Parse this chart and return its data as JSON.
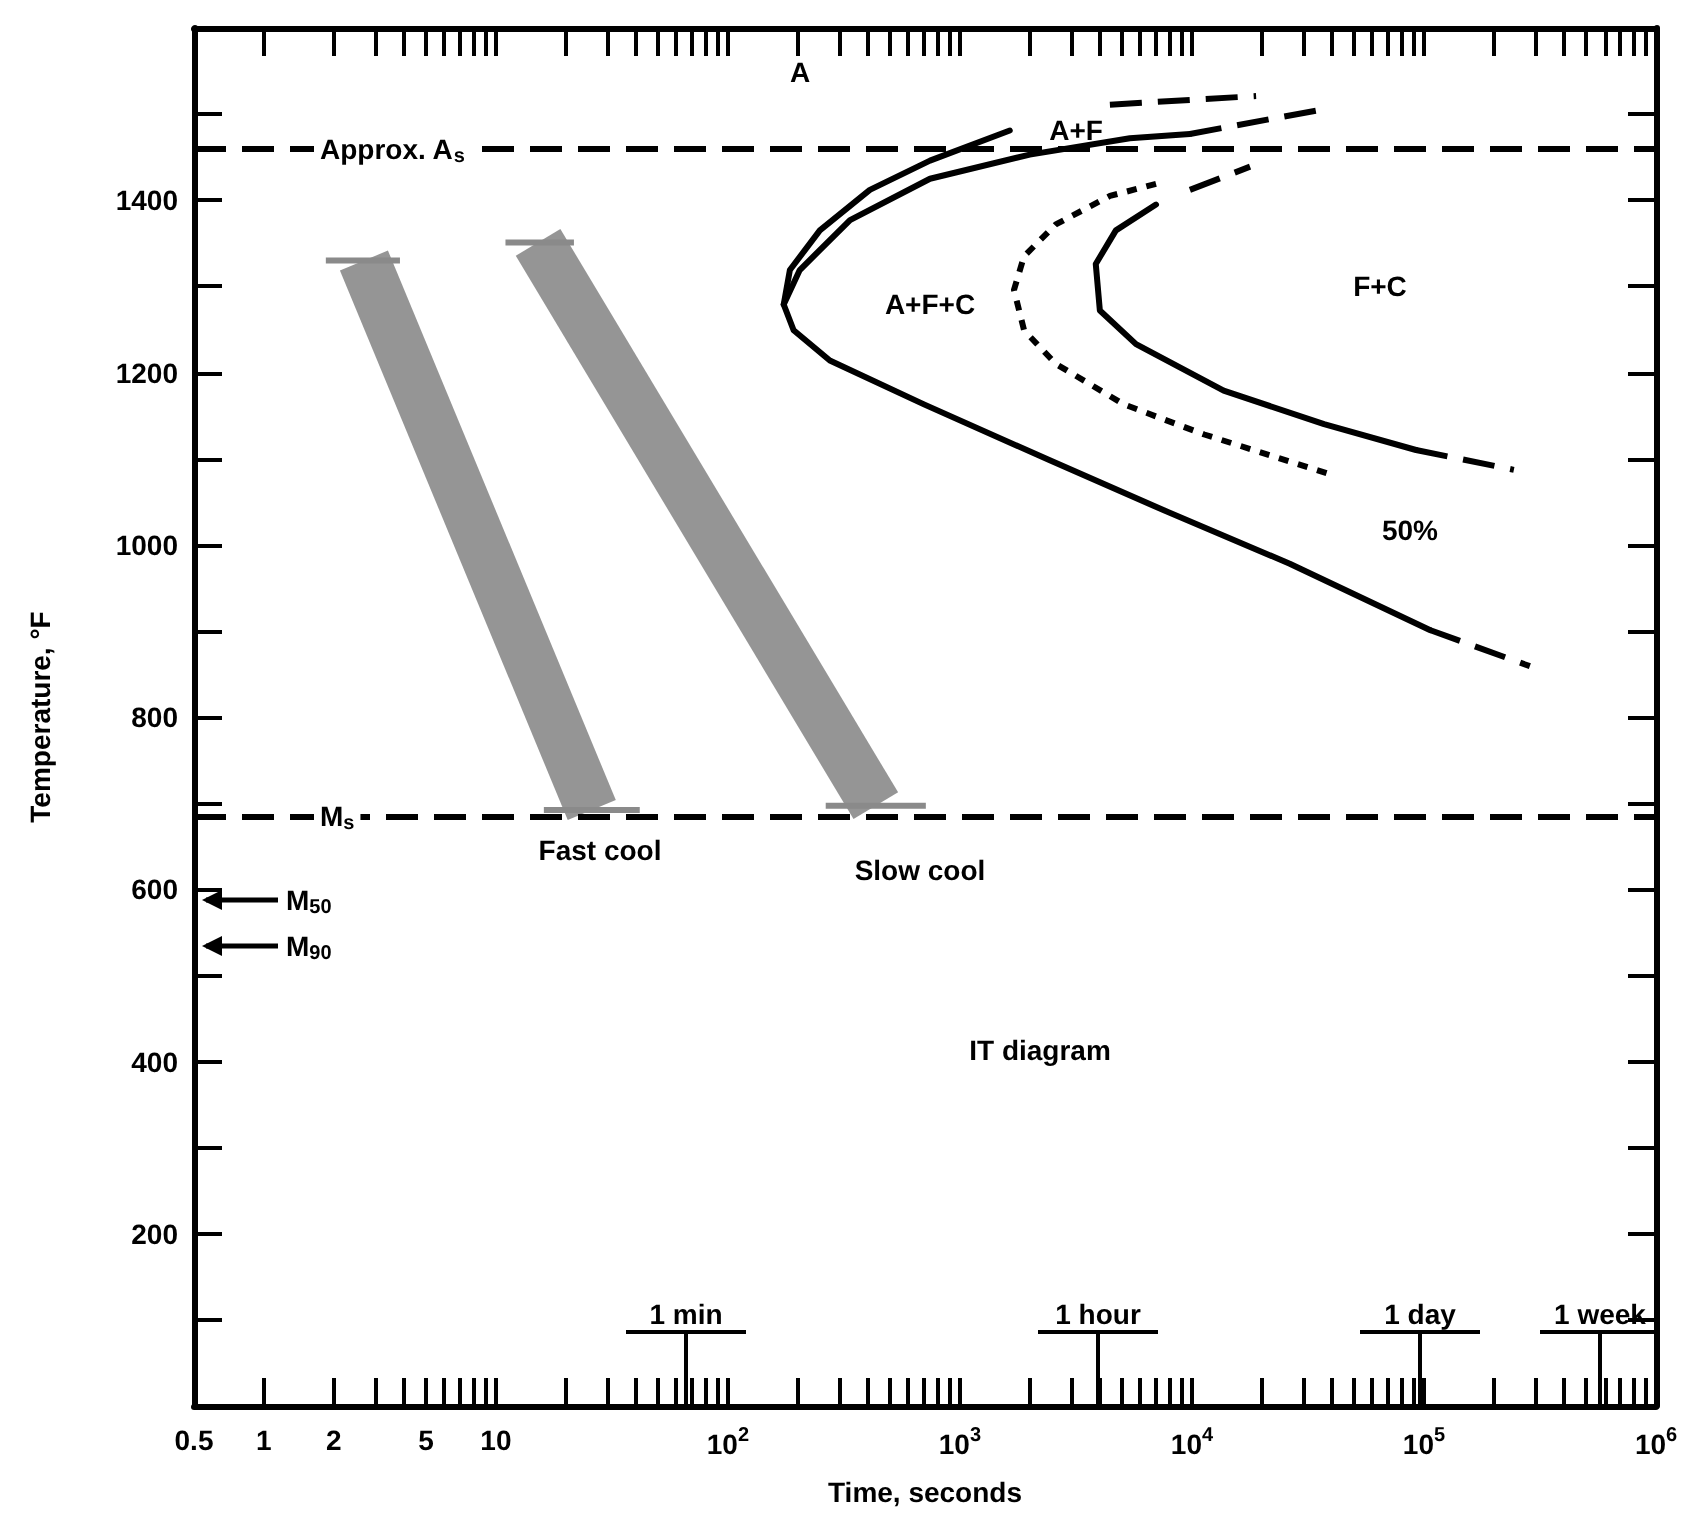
{
  "chart_data": {
    "type": "line",
    "xlabel": "Time, seconds",
    "ylabel": "Temperature, °F",
    "log": "x",
    "grid": false,
    "marker": "none",
    "xlim": [
      0.5,
      1000000
    ],
    "xticks": [
      0.5,
      1,
      2,
      {
        "value": 3,
        "label": null
      },
      {
        "value": 4,
        "label": null
      },
      5,
      {
        "value": 6,
        "label": null
      },
      {
        "value": 7,
        "label": null
      },
      {
        "value": 8,
        "label": null
      },
      {
        "value": 9,
        "label": null
      },
      10,
      {
        "value": 20,
        "label": null
      },
      {
        "value": 30,
        "label": null
      },
      {
        "value": 40,
        "label": null
      },
      {
        "value": 50,
        "label": null
      },
      {
        "value": 60,
        "label": null
      },
      {
        "value": 70,
        "label": null
      },
      {
        "value": 80,
        "label": null
      },
      {
        "value": 90,
        "label": null
      },
      {
        "value": 100,
        "label": "10$^{2}$"
      },
      {
        "value": 200,
        "label": null
      },
      {
        "value": 300,
        "label": null
      },
      {
        "value": 400,
        "label": null
      },
      {
        "value": 500,
        "label": null
      },
      {
        "value": 600,
        "label": null
      },
      {
        "value": 700,
        "label": null
      },
      {
        "value": 800,
        "label": null
      },
      {
        "value": 900,
        "label": null
      },
      {
        "value": 1000,
        "label": "10$^{3}$"
      },
      {
        "value": 2000,
        "label": null
      },
      {
        "value": 3000,
        "label": null
      },
      {
        "value": 4000,
        "label": null
      },
      {
        "value": 5000,
        "label": null
      },
      {
        "value": 6000,
        "label": null
      },
      {
        "value": 7000,
        "label": null
      },
      {
        "value": 8000,
        "label": null
      },
      {
        "value": 9000,
        "label": null
      },
      {
        "value": 10000,
        "label": "10$^{4}$"
      },
      {
        "value": 20000,
        "label": null
      },
      {
        "value": 30000,
        "label": null
      },
      {
        "value": 40000,
        "label": null
      },
      {
        "value": 50000,
        "label": null
      },
      {
        "value": 60000,
        "label": null
      },
      {
        "value": 70000,
        "label": null
      },
      {
        "value": 80000,
        "label": null
      },
      {
        "value": 90000,
        "label": null
      },
      {
        "value": 100000,
        "label": "10$^{5}$"
      },
      {
        "value": 200000,
        "label": null
      },
      {
        "value": 300000,
        "label": null
      },
      {
        "value": 400000,
        "label": null
      },
      {
        "value": 500000,
        "label": null
      },
      {
        "value": 600000,
        "label": null
      },
      {
        "value": 700000,
        "label": null
      },
      {
        "value": 800000,
        "label": null
      },
      {
        "value": 900000,
        "label": null
      },
      {
        "value": 1000000,
        "label": "10$^{6}$"
      }
    ],
    "ylim": [
      0,
      1600
    ],
    "yticks": [
      {
        "value": 100,
        "label": null
      },
      200,
      {
        "value": 300,
        "label": null
      },
      400,
      {
        "value": 500,
        "label": null
      },
      600,
      {
        "value": 700,
        "label": null
      },
      800,
      {
        "value": 900,
        "label": null
      },
      1000,
      {
        "value": 1100,
        "label": null
      },
      1200,
      {
        "value": 1300,
        "label": null
      },
      1400,
      {
        "value": 1500,
        "label": null
      }
    ],
    "series": [
      {
        "color": "#000000",
        "line_style": "solid",
        "x": [
          1640,
          743,
          409,
          249,
          185,
          174,
          192,
          275,
          700,
          2440,
          7570,
          26400,
          106000
        ],
        "values": [
          1481,
          1446,
          1412,
          1365,
          1319,
          1279,
          1249,
          1214,
          1163,
          1098,
          1040,
          978,
          901
        ]
      },
      {
        "color": "#000000",
        "line_style": "dashed",
        "x": [
          106000,
          286000
        ],
        "values": [
          901,
          859
        ]
      },
      {
        "color": "#000000",
        "line_style": "dashed",
        "x": [
          4430,
          18900
        ],
        "values": [
          1511,
          1521
        ]
      },
      {
        "color": "#000000",
        "line_style": "solid",
        "x": [
          174,
          204,
          336,
          743,
          2000,
          5400,
          9800
        ],
        "values": [
          1279,
          1319,
          1377,
          1425,
          1453,
          1472,
          1477
        ]
      },
      {
        "color": "#000000",
        "line_style": "dashed",
        "x": [
          9800,
          34200
        ],
        "values": [
          1477,
          1504
        ]
      },
      {
        "color": "#000000",
        "line_style": "dotted",
        "x": [
          7000,
          4430,
          2590,
          1890,
          1710,
          1890,
          2590,
          5090,
          11300,
          39300
        ],
        "values": [
          1419,
          1405,
          1372,
          1335,
          1296,
          1249,
          1210,
          1163,
          1128,
          1082
        ]
      },
      {
        "color": "#000000",
        "line_style": "dashed",
        "x": [
          9800,
          17800
        ],
        "values": [
          1412,
          1439
        ]
      },
      {
        "color": "#000000",
        "line_style": "solid",
        "x": [
          7000,
          4700,
          3850,
          4010,
          5740,
          13700,
          37100,
          92400
        ],
        "values": [
          1395,
          1365,
          1326,
          1272,
          1233,
          1179,
          1140,
          1110
        ]
      },
      {
        "color": "#000000",
        "line_style": "dashed",
        "x": [
          92400,
          244000
        ],
        "values": [
          1110,
          1087
        ]
      },
      {
        "color": "#8a8a8a",
        "line_style": "solid",
        "x": [
          2.7,
          25.9
        ],
        "values": [
          1330,
          692
        ],
        "xerrors": [
          [
            1.85,
            3.86
          ],
          [
            16.1,
            41.7
          ]
        ]
      },
      {
        "color": "#8a8a8a",
        "line_style": "solid",
        "x": [
          15.2,
          434
        ],
        "values": [
          1351,
          697
        ],
        "xerrors": [
          [
            11.0,
            21.7
          ],
          [
            264,
            713
          ]
        ]
      }
    ],
    "ref_lines": [
      {
        "axis": "y",
        "value": 1460,
        "label": "Approx. A$_{s}$",
        "line_style": "dashed",
        "color": "#000000"
      },
      {
        "axis": "y",
        "value": 685,
        "label": "M$_{s}$",
        "line_style": "dashed",
        "color": "#000000"
      }
    ],
    "annotations": [
      "A",
      "A+F",
      "A+F+C",
      "F+C",
      "50%",
      "Fast cool",
      "Slow cool",
      "IT diagram",
      "M$_{50}$",
      "M$_{90}$",
      "1 min",
      "1 hour",
      "1 day",
      "1 week"
    ]
  }
}
